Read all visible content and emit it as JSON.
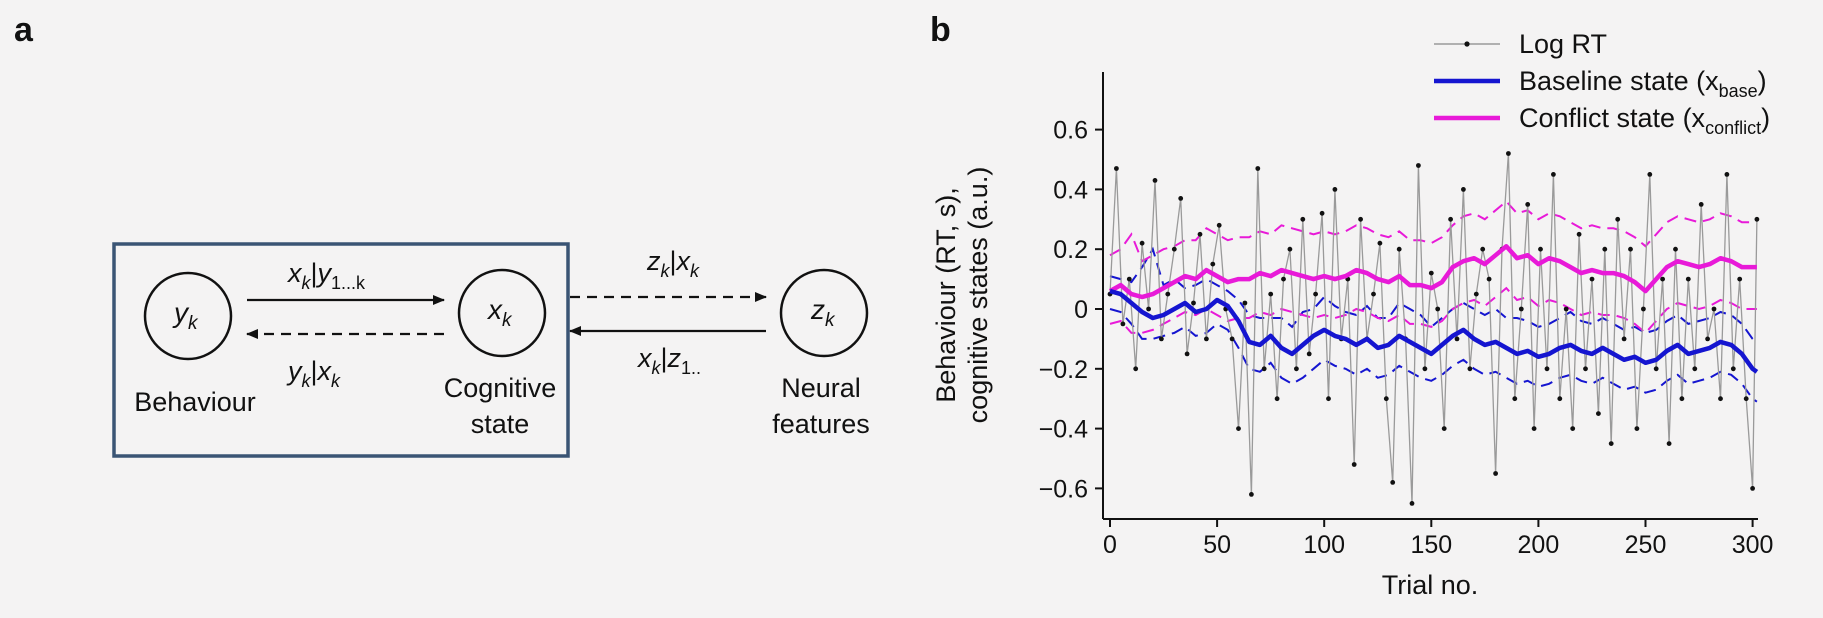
{
  "panel_a": {
    "letter": "a",
    "nodes": {
      "y": {
        "main": "y",
        "sub": "k",
        "caption": [
          "Behaviour"
        ]
      },
      "x": {
        "main": "x",
        "sub": "k",
        "caption": [
          "Cognitive",
          "state"
        ]
      },
      "z": {
        "main": "z",
        "sub": "k",
        "caption": [
          "Neural",
          "features"
        ]
      }
    },
    "edges": {
      "top_left": {
        "a": "x",
        "a_sub": "k",
        "sep": "|",
        "b": "y",
        "b_sub": "1...k"
      },
      "bottom_left": {
        "a": "y",
        "a_sub": "k",
        "sep": "|",
        "b": "x",
        "b_sub": "k"
      },
      "top_right": {
        "a": "z",
        "a_sub": "k",
        "sep": "|",
        "b": "x",
        "b_sub": "k"
      },
      "bottom_right": {
        "a": "x",
        "a_sub": "k",
        "sep": "|",
        "b": "z",
        "b_sub": "1.."
      }
    },
    "box_color": "#3a5474"
  },
  "panel_b": {
    "letter": "b",
    "legend": [
      {
        "main": "Log RT",
        "sub": "",
        "tail": ""
      },
      {
        "main": "Baseline state (x",
        "sub": "base",
        "tail": ")"
      },
      {
        "main": "Conflict state (x",
        "sub": "conflict",
        "tail": ")"
      }
    ],
    "y_axis_label": [
      "Behaviour (RT, s),",
      "cognitive states (a.u.)"
    ],
    "x_axis_label": "Trial no.",
    "y_tick_labels": [
      "0.6",
      "0.4",
      "0.2",
      "0",
      "−0.2",
      "−0.4",
      "−0.6"
    ],
    "x_tick_labels": [
      "0",
      "50",
      "100",
      "150",
      "200",
      "250",
      "300"
    ]
  },
  "colors": {
    "background": "#f4f3f3",
    "rt_line": "#9a9a9a",
    "rt_dot": "#111111",
    "baseline": "#1515d0",
    "conflict": "#e81ad8",
    "box": "#3a5474"
  },
  "chart_data": {
    "type": "line",
    "title": "",
    "xlabel": "Trial no.",
    "ylabel": "Behaviour (RT, s), cognitive states (a.u.)",
    "xlim": [
      -3,
      303
    ],
    "ylim": [
      -0.7,
      0.8
    ],
    "xticks": [
      0,
      50,
      100,
      150,
      200,
      250,
      300
    ],
    "yticks": [
      -0.6,
      -0.4,
      -0.2,
      0,
      0.2,
      0.4,
      0.6
    ],
    "legend_position": "top-right",
    "grid": false,
    "series": [
      {
        "name": "Log RT",
        "style": "thin line with dot markers",
        "color": "#9a9a9a",
        "x": [
          0,
          3,
          6,
          9,
          12,
          15,
          18,
          21,
          24,
          27,
          30,
          33,
          36,
          39,
          42,
          45,
          48,
          51,
          54,
          57,
          60,
          63,
          66,
          69,
          72,
          75,
          78,
          81,
          84,
          87,
          90,
          93,
          96,
          99,
          102,
          105,
          108,
          111,
          114,
          117,
          120,
          123,
          126,
          129,
          132,
          135,
          138,
          141,
          144,
          147,
          150,
          153,
          156,
          159,
          162,
          165,
          168,
          171,
          174,
          177,
          180,
          183,
          186,
          189,
          192,
          195,
          198,
          201,
          204,
          207,
          210,
          213,
          216,
          219,
          222,
          225,
          228,
          231,
          234,
          237,
          240,
          243,
          246,
          249,
          252,
          255,
          258,
          261,
          264,
          267,
          270,
          273,
          276,
          279,
          282,
          285,
          288,
          291,
          294,
          297,
          300,
          302
        ],
        "y": [
          0.05,
          0.47,
          -0.05,
          0.1,
          -0.2,
          0.22,
          0.0,
          0.43,
          -0.1,
          0.05,
          0.2,
          0.37,
          -0.15,
          0.02,
          0.25,
          -0.1,
          0.15,
          0.28,
          0.0,
          -0.1,
          -0.4,
          0.02,
          -0.62,
          0.47,
          -0.2,
          0.05,
          -0.3,
          0.1,
          0.2,
          -0.2,
          0.3,
          -0.15,
          0.05,
          0.32,
          -0.3,
          0.4,
          -0.1,
          0.1,
          -0.52,
          0.3,
          -0.1,
          0.05,
          0.22,
          -0.3,
          -0.58,
          0.2,
          -0.1,
          -0.65,
          0.48,
          -0.2,
          0.12,
          0.0,
          -0.4,
          0.3,
          -0.1,
          0.4,
          -0.2,
          0.05,
          0.2,
          0.1,
          -0.55,
          0.2,
          0.52,
          -0.3,
          0.0,
          0.35,
          -0.4,
          0.2,
          -0.2,
          0.45,
          -0.3,
          0.0,
          -0.4,
          0.25,
          -0.2,
          0.1,
          -0.35,
          0.2,
          -0.45,
          0.3,
          -0.1,
          0.2,
          -0.4,
          0.0,
          0.45,
          -0.2,
          0.1,
          -0.45,
          0.2,
          -0.3,
          0.1,
          -0.2,
          0.35,
          -0.1,
          0.0,
          -0.3,
          0.45,
          -0.2,
          0.1,
          -0.3,
          -0.6,
          0.3
        ]
      },
      {
        "name": "Baseline state (x base)",
        "style": "thick line with dashed confidence bounds",
        "color": "#1515d0",
        "x": [
          0,
          5,
          10,
          15,
          20,
          25,
          30,
          35,
          40,
          45,
          50,
          55,
          60,
          65,
          70,
          75,
          80,
          85,
          90,
          95,
          100,
          105,
          110,
          115,
          120,
          125,
          130,
          135,
          140,
          145,
          150,
          155,
          160,
          165,
          170,
          175,
          180,
          185,
          190,
          195,
          200,
          205,
          210,
          215,
          220,
          225,
          230,
          235,
          240,
          245,
          250,
          255,
          260,
          265,
          270,
          275,
          280,
          285,
          290,
          295,
          300,
          302
        ],
        "y": [
          0.06,
          0.05,
          0.02,
          -0.01,
          -0.03,
          -0.02,
          0.0,
          0.02,
          -0.01,
          0.0,
          0.03,
          0.01,
          -0.04,
          -0.11,
          -0.12,
          -0.09,
          -0.13,
          -0.15,
          -0.12,
          -0.09,
          -0.07,
          -0.09,
          -0.1,
          -0.12,
          -0.1,
          -0.13,
          -0.12,
          -0.09,
          -0.11,
          -0.13,
          -0.15,
          -0.12,
          -0.09,
          -0.07,
          -0.1,
          -0.12,
          -0.11,
          -0.13,
          -0.15,
          -0.14,
          -0.16,
          -0.15,
          -0.13,
          -0.12,
          -0.14,
          -0.15,
          -0.13,
          -0.15,
          -0.17,
          -0.16,
          -0.18,
          -0.17,
          -0.14,
          -0.12,
          -0.15,
          -0.14,
          -0.13,
          -0.11,
          -0.12,
          -0.15,
          -0.2,
          -0.21
        ],
        "upper": [
          0.11,
          0.1,
          0.09,
          0.14,
          0.2,
          0.08,
          0.1,
          0.07,
          0.08,
          0.1,
          0.08,
          0.06,
          0.03,
          -0.02,
          -0.03,
          -0.03,
          -0.03,
          -0.06,
          -0.01,
          0.0,
          0.04,
          0.01,
          -0.01,
          -0.02,
          0.01,
          -0.03,
          -0.03,
          0.02,
          0.0,
          -0.02,
          -0.06,
          -0.03,
          0.0,
          0.02,
          0.0,
          -0.02,
          0.0,
          -0.03,
          -0.03,
          -0.04,
          -0.06,
          -0.05,
          -0.03,
          -0.01,
          -0.04,
          -0.05,
          -0.03,
          -0.05,
          -0.07,
          -0.06,
          -0.08,
          -0.07,
          -0.04,
          -0.02,
          -0.05,
          -0.04,
          -0.03,
          -0.01,
          -0.02,
          -0.05,
          -0.1,
          -0.11
        ],
        "lower": [
          0.0,
          -0.01,
          -0.05,
          -0.1,
          -0.1,
          -0.09,
          -0.08,
          -0.06,
          -0.09,
          -0.08,
          -0.05,
          -0.07,
          -0.13,
          -0.2,
          -0.21,
          -0.18,
          -0.23,
          -0.25,
          -0.23,
          -0.2,
          -0.17,
          -0.19,
          -0.2,
          -0.22,
          -0.2,
          -0.23,
          -0.22,
          -0.19,
          -0.21,
          -0.23,
          -0.24,
          -0.22,
          -0.19,
          -0.17,
          -0.2,
          -0.22,
          -0.21,
          -0.23,
          -0.25,
          -0.24,
          -0.26,
          -0.25,
          -0.23,
          -0.22,
          -0.24,
          -0.25,
          -0.23,
          -0.25,
          -0.27,
          -0.26,
          -0.28,
          -0.27,
          -0.24,
          -0.22,
          -0.25,
          -0.24,
          -0.23,
          -0.21,
          -0.22,
          -0.25,
          -0.3,
          -0.31
        ]
      },
      {
        "name": "Conflict state (x conflict)",
        "style": "thick line with dashed confidence bounds",
        "color": "#e81ad8",
        "x": [
          0,
          5,
          10,
          15,
          20,
          25,
          30,
          35,
          40,
          45,
          50,
          55,
          60,
          65,
          70,
          75,
          80,
          85,
          90,
          95,
          100,
          105,
          110,
          115,
          120,
          125,
          130,
          135,
          140,
          145,
          150,
          155,
          160,
          165,
          170,
          175,
          180,
          185,
          190,
          195,
          200,
          205,
          210,
          215,
          220,
          225,
          230,
          235,
          240,
          245,
          250,
          255,
          260,
          265,
          270,
          275,
          280,
          285,
          290,
          295,
          300,
          302
        ],
        "y": [
          0.06,
          0.08,
          0.05,
          0.04,
          0.05,
          0.07,
          0.09,
          0.11,
          0.1,
          0.13,
          0.11,
          0.09,
          0.1,
          0.1,
          0.12,
          0.11,
          0.13,
          0.12,
          0.11,
          0.1,
          0.11,
          0.1,
          0.11,
          0.13,
          0.12,
          0.1,
          0.09,
          0.11,
          0.08,
          0.08,
          0.07,
          0.09,
          0.14,
          0.16,
          0.17,
          0.15,
          0.18,
          0.21,
          0.17,
          0.18,
          0.15,
          0.17,
          0.16,
          0.14,
          0.12,
          0.13,
          0.12,
          0.12,
          0.11,
          0.09,
          0.06,
          0.1,
          0.14,
          0.16,
          0.15,
          0.14,
          0.15,
          0.17,
          0.16,
          0.14,
          0.14,
          0.14
        ],
        "upper": [
          0.18,
          0.2,
          0.25,
          0.16,
          0.18,
          0.2,
          0.21,
          0.23,
          0.23,
          0.27,
          0.25,
          0.23,
          0.24,
          0.24,
          0.26,
          0.25,
          0.28,
          0.27,
          0.26,
          0.25,
          0.26,
          0.25,
          0.26,
          0.28,
          0.27,
          0.25,
          0.24,
          0.26,
          0.23,
          0.23,
          0.22,
          0.24,
          0.28,
          0.31,
          0.32,
          0.3,
          0.33,
          0.36,
          0.32,
          0.33,
          0.3,
          0.32,
          0.31,
          0.29,
          0.27,
          0.28,
          0.27,
          0.27,
          0.26,
          0.24,
          0.21,
          0.25,
          0.29,
          0.31,
          0.3,
          0.29,
          0.3,
          0.32,
          0.31,
          0.29,
          0.29,
          0.3
        ],
        "lower": [
          -0.05,
          -0.04,
          -0.08,
          -0.08,
          -0.07,
          -0.05,
          -0.03,
          -0.01,
          -0.02,
          0.0,
          -0.02,
          -0.04,
          -0.03,
          -0.03,
          -0.01,
          -0.02,
          0.0,
          -0.01,
          -0.02,
          -0.03,
          -0.02,
          -0.03,
          -0.02,
          0.0,
          -0.01,
          -0.03,
          -0.04,
          -0.02,
          -0.05,
          -0.05,
          -0.06,
          -0.04,
          0.0,
          0.02,
          0.03,
          0.01,
          0.04,
          0.07,
          0.03,
          0.04,
          0.01,
          0.03,
          0.02,
          0.0,
          -0.02,
          -0.01,
          -0.02,
          -0.02,
          -0.03,
          -0.05,
          -0.08,
          -0.04,
          0.0,
          0.02,
          0.01,
          0.0,
          0.01,
          0.03,
          0.02,
          0.0,
          0.0,
          0.0
        ]
      }
    ]
  }
}
